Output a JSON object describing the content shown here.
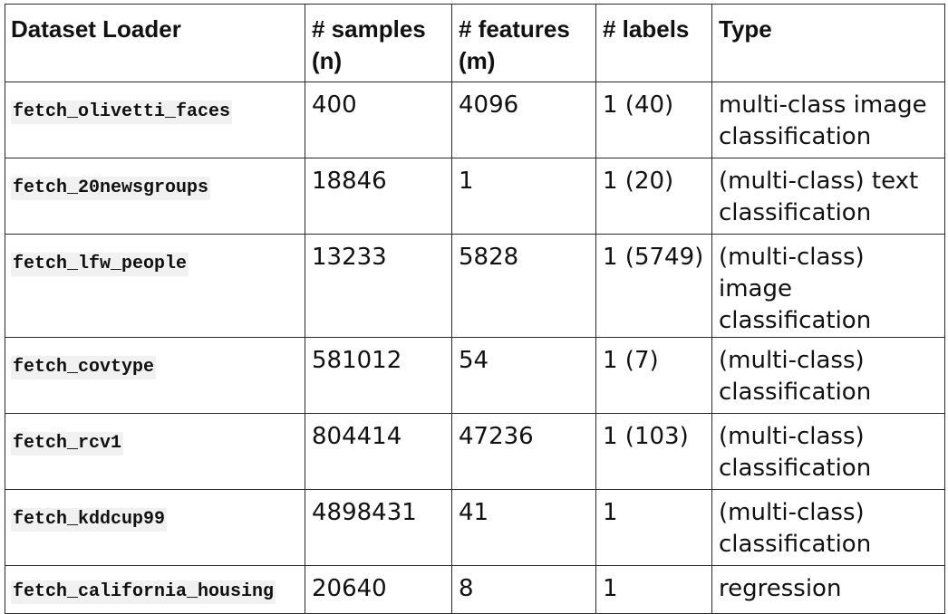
{
  "table": {
    "headers": [
      "Dataset Loader",
      "# samples (n)",
      "# features (m)",
      "# labels",
      "Type"
    ],
    "rows": [
      {
        "loader": "fetch_olivetti_faces",
        "samples": "400",
        "features": "4096",
        "labels": "1 (40)",
        "type": "multi-class image classification"
      },
      {
        "loader": "fetch_20newsgroups",
        "samples": "18846",
        "features": "1",
        "labels": "1 (20)",
        "type": "(multi-class) text classification"
      },
      {
        "loader": "fetch_lfw_people",
        "samples": "13233",
        "features": "5828",
        "labels": "1 (5749)",
        "type": "(multi-class) image classification"
      },
      {
        "loader": "fetch_covtype",
        "samples": "581012",
        "features": "54",
        "labels": "1 (7)",
        "type": "(multi-class) classification"
      },
      {
        "loader": "fetch_rcv1",
        "samples": "804414",
        "features": "47236",
        "labels": "1 (103)",
        "type": "(multi-class) classification"
      },
      {
        "loader": "fetch_kddcup99",
        "samples": "4898431",
        "features": "41",
        "labels": "1",
        "type": "(multi-class) classification"
      },
      {
        "loader": "fetch_california_housing",
        "samples": "20640",
        "features": "8",
        "labels": "1",
        "type": "regression"
      }
    ]
  }
}
